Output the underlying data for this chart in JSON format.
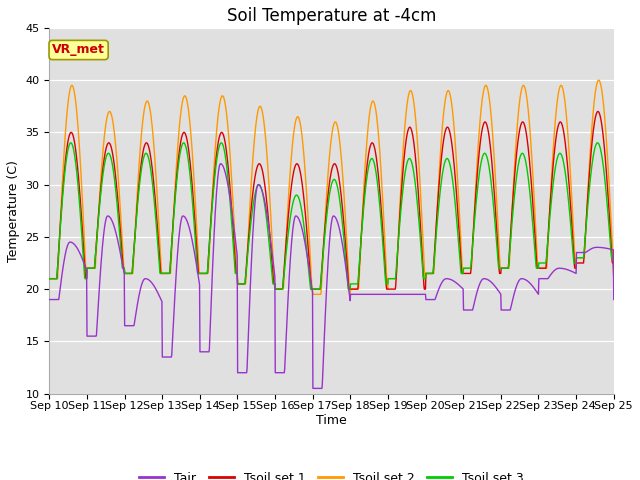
{
  "title": "Soil Temperature at -4cm",
  "xlabel": "Time",
  "ylabel": "Temperature (C)",
  "ylim": [
    10,
    45
  ],
  "n_days": 15,
  "xtick_labels": [
    "Sep 10",
    "Sep 11",
    "Sep 12",
    "Sep 13",
    "Sep 14",
    "Sep 15",
    "Sep 16",
    "Sep 17",
    "Sep 18",
    "Sep 19",
    "Sep 20",
    "Sep 21",
    "Sep 22",
    "Sep 23",
    "Sep 24",
    "Sep 25"
  ],
  "ytick_values": [
    10,
    15,
    20,
    25,
    30,
    35,
    40,
    45
  ],
  "legend_entries": [
    "Tair",
    "Tsoil set 1",
    "Tsoil set 2",
    "Tsoil set 3"
  ],
  "line_colors": [
    "#9933cc",
    "#dd0000",
    "#ff9900",
    "#00cc00"
  ],
  "background_color": "#e0e0e0",
  "figure_background": "#ffffff",
  "annotation_text": "VR_met",
  "annotation_bg": "#ffff99",
  "annotation_edge": "#999900",
  "annotation_text_color": "#cc0000",
  "title_fontsize": 12,
  "axis_label_fontsize": 9,
  "tick_fontsize": 8,
  "legend_fontsize": 9,
  "tair_min": [
    19,
    15.5,
    16.5,
    13.5,
    14,
    15,
    14.5,
    15,
    19.5,
    19.5,
    19,
    18,
    18,
    21,
    23.5
  ],
  "tair_max": [
    24.5,
    27,
    21,
    27,
    32,
    30,
    27,
    27,
    19.5,
    19.5,
    21,
    21,
    21,
    22,
    24
  ],
  "tair_drop": [
    19,
    15.5,
    16.5,
    13.5,
    14,
    12,
    12,
    10.5,
    19.5,
    19.5,
    19,
    18,
    18,
    21,
    23.5
  ],
  "tsoil1_min": [
    21,
    22,
    21.5,
    21.5,
    21.5,
    20.5,
    20,
    20,
    20,
    20,
    21.5,
    21.5,
    22,
    22,
    22.5
  ],
  "tsoil1_max": [
    35,
    34,
    34,
    35,
    35,
    32,
    32,
    32,
    34,
    35.5,
    35.5,
    36,
    36,
    36,
    37
  ],
  "tsoil2_min": [
    21,
    22,
    21.5,
    21.5,
    21.5,
    20.5,
    20,
    19.5,
    20,
    21,
    21.5,
    22,
    22,
    22,
    23
  ],
  "tsoil2_max": [
    39.5,
    37,
    38,
    38.5,
    38.5,
    37.5,
    36.5,
    36,
    38,
    39,
    39,
    39.5,
    39.5,
    39.5,
    40
  ],
  "tsoil3_min": [
    21,
    22,
    21.5,
    21.5,
    21.5,
    20.5,
    20,
    20,
    20.5,
    21,
    21.5,
    22,
    22,
    22.5,
    23
  ],
  "tsoil3_max": [
    34,
    33,
    33,
    34,
    34,
    30,
    29,
    30.5,
    32.5,
    32.5,
    32.5,
    33,
    33,
    33,
    34
  ]
}
